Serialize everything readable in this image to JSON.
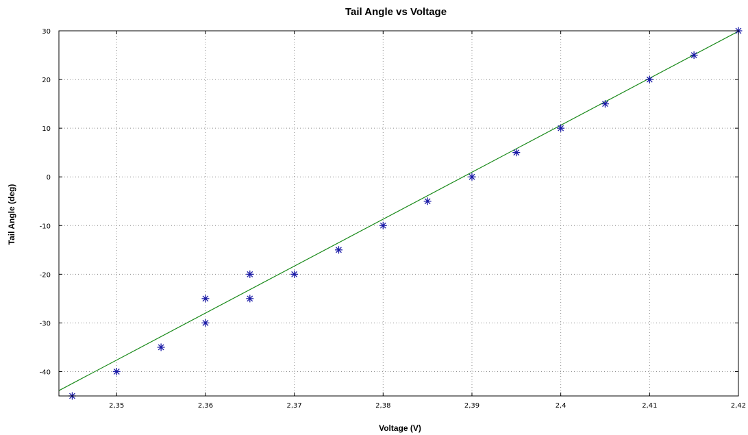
{
  "chart_data": {
    "type": "scatter",
    "title": "Tail Angle vs Voltage",
    "xlabel": "Voltage (V)",
    "ylabel": "Tail Angle (deg)",
    "xlim": [
      2.3435,
      2.42
    ],
    "ylim": [
      -45,
      30
    ],
    "x_ticks": [
      2.35,
      2.36,
      2.37,
      2.38,
      2.39,
      2.4,
      2.41,
      2.42
    ],
    "x_tick_labels": [
      "2,35",
      "2,36",
      "2,37",
      "2,38",
      "2,39",
      "2,4",
      "2,41",
      "2,42"
    ],
    "y_ticks": [
      -40,
      -30,
      -20,
      -10,
      0,
      10,
      20,
      30
    ],
    "y_tick_labels": [
      "-40",
      "-30",
      "-20",
      "-10",
      "0",
      "10",
      "20",
      "30"
    ],
    "grid": true,
    "series": [
      {
        "kind": "markers",
        "marker": "asterisk",
        "color": "#1a1aa6",
        "x": [
          2.345,
          2.35,
          2.355,
          2.36,
          2.36,
          2.365,
          2.365,
          2.37,
          2.375,
          2.38,
          2.385,
          2.39,
          2.395,
          2.4,
          2.405,
          2.41,
          2.415,
          2.42
        ],
        "y": [
          -45,
          -40,
          -35,
          -30,
          -25,
          -25,
          -20,
          -20,
          -15,
          -10,
          -5,
          0,
          5,
          10,
          15,
          20,
          25,
          30
        ]
      },
      {
        "kind": "fit-line",
        "color": "#1a8a1a",
        "x": [
          2.3435,
          2.42
        ],
        "y": [
          -43.9,
          29.9
        ]
      }
    ]
  }
}
